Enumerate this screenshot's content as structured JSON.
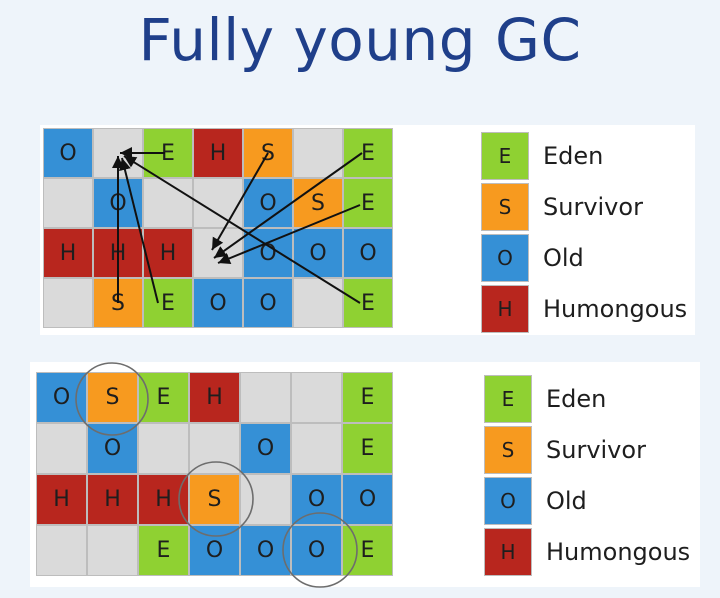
{
  "title": "Fully young GC",
  "colors": {
    "E": "#8fd132",
    "S": "#f79a1f",
    "O": "#3590d6",
    "H": "#b8261e",
    "empty": "#dadada"
  },
  "top_diagram": {
    "rows": [
      [
        "O",
        "",
        "E",
        "H",
        "S",
        "",
        "E"
      ],
      [
        "",
        "O",
        "",
        "",
        "O",
        "S",
        "E"
      ],
      [
        "H",
        "H",
        "H",
        "",
        "O",
        "O",
        "O"
      ],
      [
        "",
        "S",
        "E",
        "O",
        "O",
        "",
        "E"
      ]
    ],
    "legend": [
      {
        "key": "E",
        "label": "Eden"
      },
      {
        "key": "S",
        "label": "Survivor"
      },
      {
        "key": "O",
        "label": "Old"
      },
      {
        "key": "H",
        "label": "Humongous"
      }
    ]
  },
  "bottom_diagram": {
    "rows": [
      [
        "O",
        "S",
        "E",
        "H",
        "",
        "",
        "E"
      ],
      [
        "",
        "O",
        "",
        "",
        "O",
        "",
        "E"
      ],
      [
        "H",
        "H",
        "H",
        "S",
        "",
        "O",
        "O"
      ],
      [
        "",
        "",
        "E",
        "O",
        "O",
        "O",
        "E"
      ]
    ],
    "legend": [
      {
        "key": "E",
        "label": "Eden"
      },
      {
        "key": "S",
        "label": "Survivor"
      },
      {
        "key": "O",
        "label": "Old"
      },
      {
        "key": "H",
        "label": "Humongous"
      }
    ]
  }
}
